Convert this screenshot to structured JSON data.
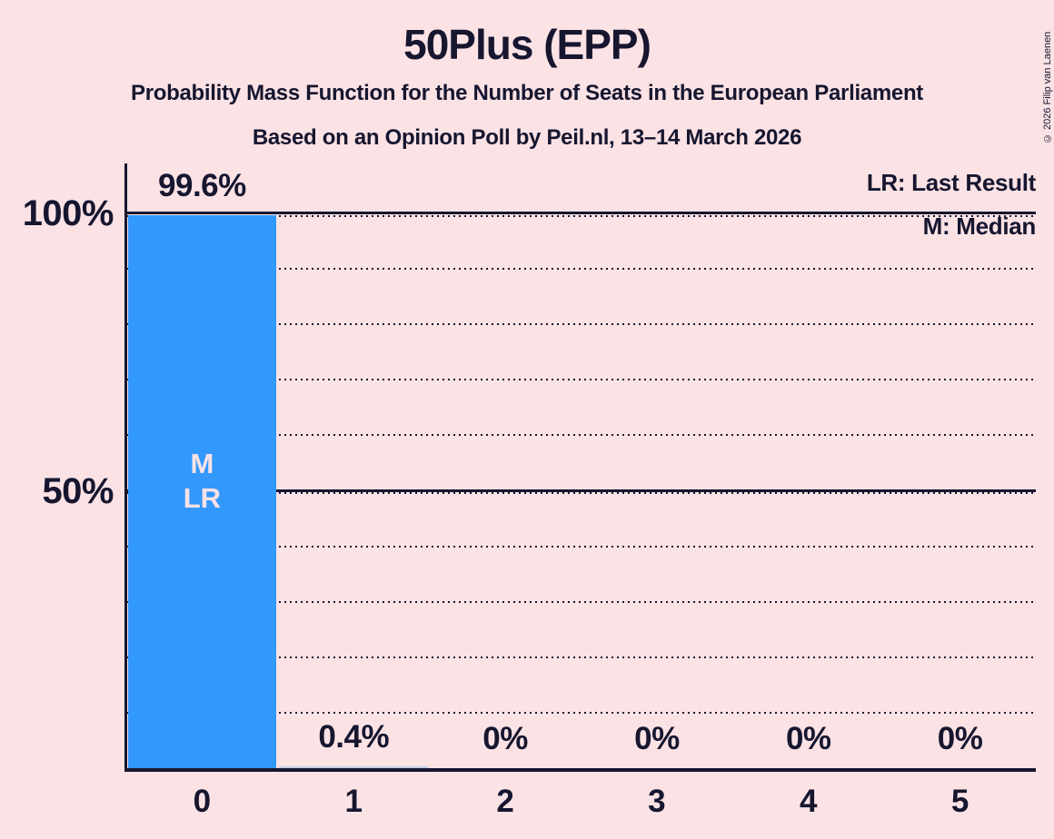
{
  "page": {
    "background": "#fbe2e5",
    "ink": "#16162f"
  },
  "header": {
    "title": "50Plus (EPP)",
    "subtitle": "Probability Mass Function for the Number of Seats in the European Parliament",
    "poll_line": "Based on an Opinion Poll by Peil.nl, 13–14 March 2026"
  },
  "copyright": "© 2026 Filip van Laenen",
  "legend": {
    "last_result": "LR: Last Result",
    "median": "M: Median"
  },
  "chart_data": {
    "type": "bar",
    "title": "50Plus (EPP)",
    "categories": [
      "0",
      "1",
      "2",
      "3",
      "4",
      "5"
    ],
    "values": [
      99.6,
      0.4,
      0,
      0,
      0,
      0
    ],
    "value_labels": [
      "99.6%",
      "0.4%",
      "0%",
      "0%",
      "0%",
      "0%"
    ],
    "ylim": [
      0,
      100
    ],
    "yticks": [
      {
        "percent": 100,
        "label": "100%"
      },
      {
        "percent": 50,
        "label": "50%"
      }
    ],
    "grid": {
      "dotted_percents": [
        10,
        20,
        30,
        40,
        60,
        70,
        80,
        90
      ],
      "solid_percents": [
        50,
        100
      ]
    },
    "annotations": [
      {
        "seat_index": 0,
        "lines": [
          "M",
          "LR"
        ]
      }
    ],
    "bar_color": "#3398fc",
    "tiny_bar_color": "#c3cee7",
    "legend_position": "top-right",
    "gridlines": "dotted every 10%, solid at 50% and 100%"
  }
}
